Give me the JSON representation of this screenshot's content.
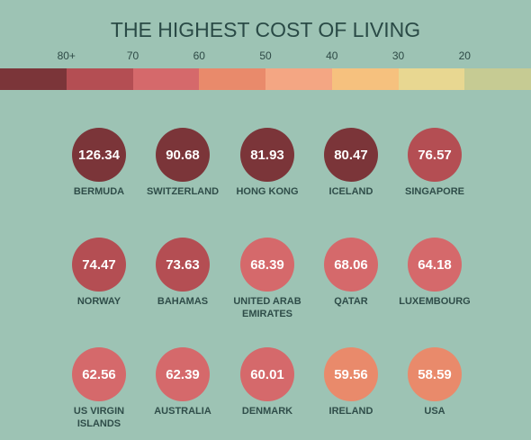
{
  "title": "THE HIGHEST COST OF LIVING",
  "legend": {
    "ticks": [
      {
        "value": 80,
        "label": "80+"
      },
      70,
      60,
      50,
      40,
      30,
      20
    ],
    "colors": [
      "#7b3539",
      "#b44e53",
      "#d5696b",
      "#e98a6b",
      "#f4a683",
      "#f6c17e",
      "#e8d791",
      "#c6cb93"
    ]
  },
  "items": [
    {
      "name": "BERMUDA",
      "value": 126.34
    },
    {
      "name": "SWITZERLAND",
      "value": 90.68
    },
    {
      "name": "HONG KONG",
      "value": 81.93
    },
    {
      "name": "ICELAND",
      "value": 80.47
    },
    {
      "name": "SINGAPORE",
      "value": 76.57
    },
    {
      "name": "NORWAY",
      "value": 74.47
    },
    {
      "name": "BAHAMAS",
      "value": 73.63
    },
    {
      "name": "UNITED ARAB EMIRATES",
      "value": 68.39
    },
    {
      "name": "QATAR",
      "value": 68.06
    },
    {
      "name": "LUXEMBOURG",
      "value": 64.18
    },
    {
      "name": "US VIRGIN ISLANDS",
      "value": 62.56
    },
    {
      "name": "AUSTRALIA",
      "value": 62.39
    },
    {
      "name": "DENMARK",
      "value": 60.01
    },
    {
      "name": "IRELAND",
      "value": 59.56
    },
    {
      "name": "USA",
      "value": 58.59
    }
  ]
}
